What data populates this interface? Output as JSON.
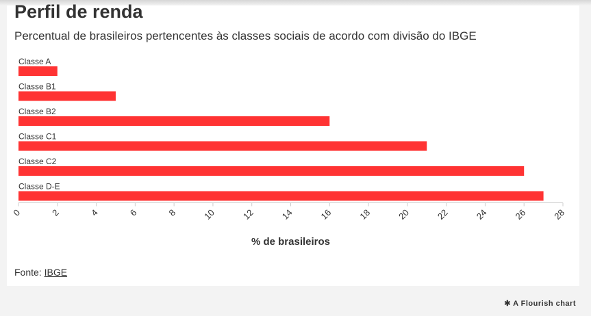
{
  "header": {
    "title": "Perfil de renda",
    "subtitle": "Percentual de brasileiros pertencentes às classes sociais de acordo com divisão do IBGE"
  },
  "footer": {
    "source_prefix": "Fonte:",
    "source_link": "IBGE",
    "credit": "A Flourish chart"
  },
  "colors": {
    "bar": "#ff3333",
    "text": "#333333",
    "axis": "#cccccc"
  },
  "chart_data": {
    "type": "bar",
    "orientation": "horizontal",
    "categories": [
      "Classe A",
      "Classe B1",
      "Classe B2",
      "Classe C1",
      "Classe C2",
      "Classe D-E"
    ],
    "values": [
      2,
      5,
      16,
      21,
      26,
      27
    ],
    "xlabel": "% de brasileiros",
    "xlim": [
      0,
      28
    ],
    "xticks": [
      "0",
      "2",
      "4",
      "6",
      "8",
      "10",
      "12",
      "14",
      "16",
      "18",
      "20",
      "22",
      "24",
      "26",
      "28"
    ],
    "grid": false,
    "legend": "none"
  }
}
